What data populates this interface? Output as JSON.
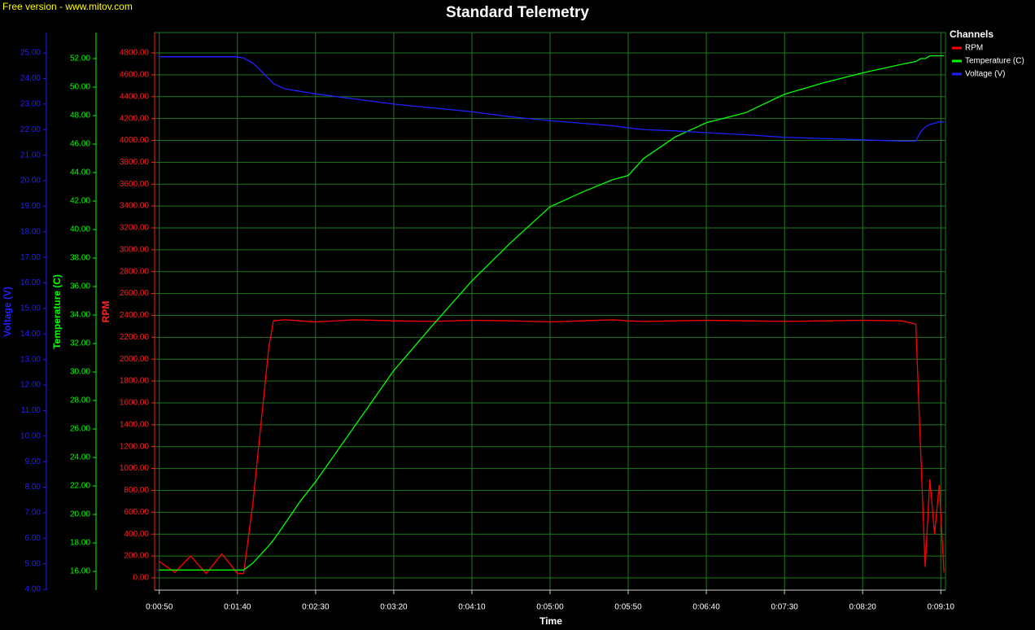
{
  "chart_data": {
    "type": "line",
    "watermark": "Free version - www.mitov.com",
    "title": "Standard Telemetry",
    "x_label": "Time",
    "y_label": "RPM",
    "y2_label": "Temperature (C)",
    "y3_label": "Voltage (V)",
    "legend_title": "Channels",
    "grid": true,
    "legend_position": "right",
    "xlim": [
      47,
      553
    ],
    "xticks": [
      {
        "value": 50,
        "label": "0:00:50"
      },
      {
        "value": 100,
        "label": "0:01:40"
      },
      {
        "value": 150,
        "label": "0:02:30"
      },
      {
        "value": 200,
        "label": "0:03:20"
      },
      {
        "value": 250,
        "label": "0:04:10"
      },
      {
        "value": 300,
        "label": "0:05:00"
      },
      {
        "value": 350,
        "label": "0:05:50"
      },
      {
        "value": 400,
        "label": "0:06:40"
      },
      {
        "value": 450,
        "label": "0:07:30"
      },
      {
        "value": 500,
        "label": "0:08:20"
      },
      {
        "value": 550,
        "label": "0:09:10"
      }
    ],
    "ylim": [
      -112,
      4986
    ],
    "yticks": [
      {
        "value": 0,
        "label": "0.00"
      },
      {
        "value": 200,
        "label": "200.00"
      },
      {
        "value": 400,
        "label": "400.00"
      },
      {
        "value": 600,
        "label": "600.00"
      },
      {
        "value": 800,
        "label": "800.00"
      },
      {
        "value": 1000,
        "label": "1000.00"
      },
      {
        "value": 1200,
        "label": "1200.00"
      },
      {
        "value": 1400,
        "label": "1400.00"
      },
      {
        "value": 1600,
        "label": "1600.00"
      },
      {
        "value": 1800,
        "label": "1800.00"
      },
      {
        "value": 2000,
        "label": "2000.00"
      },
      {
        "value": 2200,
        "label": "2200.00"
      },
      {
        "value": 2400,
        "label": "2400.00"
      },
      {
        "value": 2600,
        "label": "2600.00"
      },
      {
        "value": 2800,
        "label": "2800.00"
      },
      {
        "value": 3000,
        "label": "3000.00"
      },
      {
        "value": 3200,
        "label": "3200.00"
      },
      {
        "value": 3400,
        "label": "3400.00"
      },
      {
        "value": 3600,
        "label": "3600.00"
      },
      {
        "value": 3800,
        "label": "3800.00"
      },
      {
        "value": 4000,
        "label": "4000.00"
      },
      {
        "value": 4200,
        "label": "4200.00"
      },
      {
        "value": 4400,
        "label": "4400.00"
      },
      {
        "value": 4600,
        "label": "4600.00"
      },
      {
        "value": 4800,
        "label": "4800.00"
      }
    ],
    "y2lim": [
      14.69,
      53.83
    ],
    "y2ticks": [
      {
        "value": 16,
        "label": "16.00"
      },
      {
        "value": 18,
        "label": "18.00"
      },
      {
        "value": 20,
        "label": "20.00"
      },
      {
        "value": 22,
        "label": "22.00"
      },
      {
        "value": 24,
        "label": "24.00"
      },
      {
        "value": 26,
        "label": "26.00"
      },
      {
        "value": 28,
        "label": "28.00"
      },
      {
        "value": 30,
        "label": "30.00"
      },
      {
        "value": 32,
        "label": "32.00"
      },
      {
        "value": 34,
        "label": "34.00"
      },
      {
        "value": 36,
        "label": "36.00"
      },
      {
        "value": 38,
        "label": "38.00"
      },
      {
        "value": 40,
        "label": "40.00"
      },
      {
        "value": 42,
        "label": "42.00"
      },
      {
        "value": 44,
        "label": "44.00"
      },
      {
        "value": 46,
        "label": "46.00"
      },
      {
        "value": 48,
        "label": "48.00"
      },
      {
        "value": 50,
        "label": "50.00"
      },
      {
        "value": 52,
        "label": "52.00"
      }
    ],
    "y3lim": [
      3.97,
      25.8
    ],
    "y3ticks": [
      {
        "value": 4,
        "label": "4.00"
      },
      {
        "value": 5,
        "label": "5.00"
      },
      {
        "value": 6,
        "label": "6.00"
      },
      {
        "value": 7,
        "label": "7.00"
      },
      {
        "value": 8,
        "label": "8.00"
      },
      {
        "value": 9,
        "label": "9.00"
      },
      {
        "value": 10,
        "label": "10.00"
      },
      {
        "value": 11,
        "label": "11.00"
      },
      {
        "value": 12,
        "label": "12.00"
      },
      {
        "value": 13,
        "label": "13.00"
      },
      {
        "value": 14,
        "label": "14.00"
      },
      {
        "value": 15,
        "label": "15.00"
      },
      {
        "value": 16,
        "label": "16.00"
      },
      {
        "value": 17,
        "label": "17.00"
      },
      {
        "value": 18,
        "label": "18.00"
      },
      {
        "value": 19,
        "label": "19.00"
      },
      {
        "value": 20,
        "label": "20.00"
      },
      {
        "value": 21,
        "label": "21.00"
      },
      {
        "value": 22,
        "label": "22.00"
      },
      {
        "value": 23,
        "label": "23.00"
      },
      {
        "value": 24,
        "label": "24.00"
      },
      {
        "value": 25,
        "label": "25.00"
      }
    ],
    "x": [
      50,
      60,
      70,
      80,
      90,
      100,
      104,
      110,
      115,
      120,
      123,
      130,
      140,
      150,
      175,
      200,
      225,
      250,
      275,
      300,
      320,
      340,
      350,
      360,
      380,
      400,
      425,
      450,
      475,
      500,
      525,
      534,
      537,
      540,
      543,
      546,
      549,
      552
    ],
    "series": [
      {
        "name": "RPM",
        "color": "#ff0000",
        "axis": "y",
        "values": [
          150,
          50,
          200,
          40,
          220,
          40,
          40,
          700,
          1400,
          2100,
          2350,
          2360,
          2350,
          2340,
          2360,
          2350,
          2345,
          2355,
          2350,
          2340,
          2350,
          2360,
          2350,
          2345,
          2350,
          2355,
          2350,
          2345,
          2350,
          2355,
          2350,
          2320,
          1200,
          100,
          900,
          400,
          850,
          50
        ]
      },
      {
        "name": "Temperature (C)",
        "color": "#00ff00",
        "axis": "y2",
        "values": [
          16.1,
          16.1,
          16.1,
          16.1,
          16.1,
          16.1,
          16.1,
          16.6,
          17.2,
          17.8,
          18.2,
          19.3,
          20.9,
          22.3,
          26.2,
          30.1,
          33.3,
          36.4,
          39.1,
          41.6,
          42.6,
          43.5,
          43.8,
          45.0,
          46.5,
          47.5,
          48.2,
          49.5,
          50.3,
          51.0,
          51.6,
          51.8,
          52.0,
          52.0,
          52.2,
          52.2,
          52.2,
          52.2
        ]
      },
      {
        "name": "Voltage (V)",
        "color": "#2020ff",
        "axis": "y3",
        "values": [
          24.85,
          24.85,
          24.85,
          24.85,
          24.85,
          24.85,
          24.8,
          24.6,
          24.3,
          24.0,
          23.8,
          23.6,
          23.5,
          23.4,
          23.2,
          23.0,
          22.85,
          22.7,
          22.5,
          22.35,
          22.25,
          22.15,
          22.07,
          22.0,
          21.95,
          21.88,
          21.8,
          21.7,
          21.65,
          21.6,
          21.55,
          21.55,
          21.9,
          22.1,
          22.2,
          22.25,
          22.3,
          22.3
        ]
      }
    ]
  }
}
